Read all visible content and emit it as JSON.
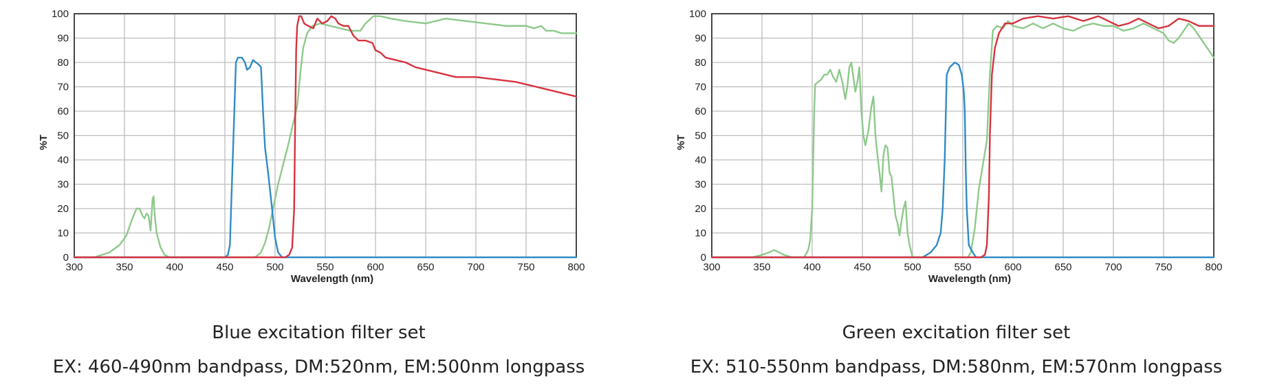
{
  "chart_data": [
    {
      "type": "line",
      "title": "",
      "xlabel": "Wavelength (nm)",
      "ylabel": "%T",
      "xlim": [
        300,
        800
      ],
      "ylim": [
        0,
        100
      ],
      "xticks": [
        300,
        350,
        400,
        450,
        500,
        550,
        600,
        650,
        700,
        750,
        800
      ],
      "yticks": [
        0,
        10,
        20,
        30,
        40,
        50,
        60,
        70,
        80,
        90,
        100
      ],
      "grid": true,
      "series": [
        {
          "color": "#8dc98a",
          "points": [
            [
              300,
              0
            ],
            [
              320,
              0
            ],
            [
              335,
              2
            ],
            [
              345,
              5
            ],
            [
              352,
              9
            ],
            [
              357,
              15
            ],
            [
              362,
              20
            ],
            [
              365,
              20
            ],
            [
              368,
              17
            ],
            [
              370,
              16
            ],
            [
              372,
              18
            ],
            [
              374,
              17
            ],
            [
              376,
              11
            ],
            [
              378,
              24
            ],
            [
              379,
              25
            ],
            [
              380,
              18
            ],
            [
              382,
              10
            ],
            [
              386,
              4
            ],
            [
              390,
              1
            ],
            [
              395,
              0
            ],
            [
              480,
              0
            ],
            [
              486,
              2
            ],
            [
              490,
              6
            ],
            [
              494,
              12
            ],
            [
              498,
              20
            ],
            [
              503,
              30
            ],
            [
              508,
              38
            ],
            [
              513,
              46
            ],
            [
              518,
              55
            ],
            [
              522,
              62
            ],
            [
              525,
              75
            ],
            [
              528,
              86
            ],
            [
              532,
              92
            ],
            [
              537,
              95
            ],
            [
              545,
              96
            ],
            [
              555,
              95
            ],
            [
              565,
              94
            ],
            [
              575,
              93
            ],
            [
              585,
              93
            ],
            [
              590,
              96
            ],
            [
              598,
              99
            ],
            [
              605,
              99
            ],
            [
              615,
              98
            ],
            [
              630,
              97
            ],
            [
              650,
              96
            ],
            [
              670,
              98
            ],
            [
              690,
              97
            ],
            [
              710,
              96
            ],
            [
              730,
              95
            ],
            [
              750,
              95
            ],
            [
              758,
              94
            ],
            [
              765,
              95
            ],
            [
              770,
              93
            ],
            [
              778,
              93
            ],
            [
              785,
              92
            ],
            [
              800,
              92
            ]
          ]
        },
        {
          "color": "#2f8bc6",
          "points": [
            [
              300,
              0
            ],
            [
              450,
              0
            ],
            [
              453,
              1
            ],
            [
              455,
              5
            ],
            [
              457,
              30
            ],
            [
              459,
              55
            ],
            [
              461,
              80
            ],
            [
              463,
              82
            ],
            [
              467,
              82
            ],
            [
              470,
              80
            ],
            [
              472,
              77
            ],
            [
              475,
              78
            ],
            [
              478,
              81
            ],
            [
              481,
              80
            ],
            [
              484,
              79
            ],
            [
              486,
              78
            ],
            [
              488,
              60
            ],
            [
              490,
              45
            ],
            [
              493,
              35
            ],
            [
              497,
              20
            ],
            [
              500,
              8
            ],
            [
              503,
              2
            ],
            [
              507,
              0
            ],
            [
              800,
              0
            ]
          ]
        },
        {
          "color": "#d6323e",
          "points": [
            [
              300,
              0
            ],
            [
              510,
              0
            ],
            [
              514,
              1
            ],
            [
              517,
              4
            ],
            [
              519,
              20
            ],
            [
              520,
              55
            ],
            [
              521,
              85
            ],
            [
              522,
              95
            ],
            [
              524,
              99
            ],
            [
              526,
              99
            ],
            [
              529,
              96
            ],
            [
              533,
              95
            ],
            [
              538,
              94
            ],
            [
              542,
              98
            ],
            [
              547,
              96
            ],
            [
              552,
              97
            ],
            [
              556,
              99
            ],
            [
              560,
              98
            ],
            [
              563,
              96
            ],
            [
              568,
              95
            ],
            [
              573,
              95
            ],
            [
              578,
              91
            ],
            [
              583,
              89
            ],
            [
              590,
              89
            ],
            [
              597,
              88
            ],
            [
              600,
              85
            ],
            [
              605,
              84
            ],
            [
              610,
              82
            ],
            [
              620,
              81
            ],
            [
              630,
              80
            ],
            [
              640,
              78
            ],
            [
              660,
              76
            ],
            [
              680,
              74
            ],
            [
              700,
              74
            ],
            [
              720,
              73
            ],
            [
              740,
              72
            ],
            [
              760,
              70
            ],
            [
              780,
              68
            ],
            [
              800,
              66
            ]
          ]
        }
      ]
    },
    {
      "type": "line",
      "title": "",
      "xlabel": "Wavelength (nm)",
      "ylabel": "%T",
      "xlim": [
        300,
        800
      ],
      "ylim": [
        0,
        100
      ],
      "xticks": [
        300,
        350,
        400,
        450,
        500,
        550,
        600,
        650,
        700,
        750,
        800
      ],
      "yticks": [
        0,
        10,
        20,
        30,
        40,
        50,
        60,
        70,
        80,
        90,
        100
      ],
      "grid": true,
      "series": [
        {
          "color": "#8dc98a",
          "points": [
            [
              300,
              0
            ],
            [
              340,
              0
            ],
            [
              350,
              1
            ],
            [
              357,
              2
            ],
            [
              362,
              3
            ],
            [
              367,
              2
            ],
            [
              372,
              1
            ],
            [
              380,
              0
            ],
            [
              392,
              0
            ],
            [
              396,
              3
            ],
            [
              398,
              7
            ],
            [
              400,
              20
            ],
            [
              401,
              40
            ],
            [
              402,
              60
            ],
            [
              403,
              71
            ],
            [
              406,
              72
            ],
            [
              409,
              73
            ],
            [
              412,
              75
            ],
            [
              415,
              75
            ],
            [
              418,
              77
            ],
            [
              421,
              74
            ],
            [
              424,
              72
            ],
            [
              427,
              77
            ],
            [
              430,
              72
            ],
            [
              433,
              65
            ],
            [
              435,
              70
            ],
            [
              437,
              78
            ],
            [
              439,
              80
            ],
            [
              441,
              74
            ],
            [
              443,
              68
            ],
            [
              445,
              72
            ],
            [
              447,
              78
            ],
            [
              449,
              60
            ],
            [
              451,
              50
            ],
            [
              453,
              46
            ],
            [
              456,
              52
            ],
            [
              459,
              62
            ],
            [
              461,
              66
            ],
            [
              463,
              50
            ],
            [
              465,
              42
            ],
            [
              467,
              35
            ],
            [
              469,
              27
            ],
            [
              471,
              42
            ],
            [
              473,
              46
            ],
            [
              475,
              45
            ],
            [
              477,
              35
            ],
            [
              479,
              33
            ],
            [
              481,
              25
            ],
            [
              483,
              17
            ],
            [
              485,
              14
            ],
            [
              487,
              9
            ],
            [
              489,
              15
            ],
            [
              491,
              20
            ],
            [
              493,
              23
            ],
            [
              495,
              10
            ],
            [
              497,
              5
            ],
            [
              500,
              0
            ],
            [
              555,
              0
            ],
            [
              558,
              2
            ],
            [
              562,
              12
            ],
            [
              566,
              28
            ],
            [
              570,
              38
            ],
            [
              574,
              48
            ],
            [
              577,
              75
            ],
            [
              580,
              93
            ],
            [
              584,
              95
            ],
            [
              590,
              94
            ],
            [
              595,
              97
            ],
            [
              600,
              95
            ],
            [
              610,
              94
            ],
            [
              620,
              96
            ],
            [
              630,
              94
            ],
            [
              640,
              96
            ],
            [
              650,
              94
            ],
            [
              660,
              93
            ],
            [
              670,
              95
            ],
            [
              680,
              96
            ],
            [
              690,
              95
            ],
            [
              700,
              95
            ],
            [
              710,
              93
            ],
            [
              720,
              94
            ],
            [
              730,
              96
            ],
            [
              740,
              94
            ],
            [
              750,
              92
            ],
            [
              755,
              89
            ],
            [
              760,
              88
            ],
            [
              765,
              90
            ],
            [
              770,
              93
            ],
            [
              775,
              96
            ],
            [
              780,
              94
            ],
            [
              785,
              91
            ],
            [
              790,
              88
            ],
            [
              795,
              85
            ],
            [
              800,
              82
            ]
          ]
        },
        {
          "color": "#2f8bc6",
          "points": [
            [
              300,
              0
            ],
            [
              510,
              0
            ],
            [
              518,
              2
            ],
            [
              524,
              5
            ],
            [
              528,
              10
            ],
            [
              530,
              20
            ],
            [
              532,
              40
            ],
            [
              534,
              75
            ],
            [
              537,
              78
            ],
            [
              542,
              80
            ],
            [
              546,
              79
            ],
            [
              549,
              75
            ],
            [
              551,
              68
            ],
            [
              552,
              60
            ],
            [
              553,
              35
            ],
            [
              554,
              20
            ],
            [
              556,
              5
            ],
            [
              560,
              2
            ],
            [
              563,
              0
            ],
            [
              800,
              0
            ]
          ]
        },
        {
          "color": "#d6323e",
          "points": [
            [
              300,
              0
            ],
            [
              568,
              0
            ],
            [
              572,
              1
            ],
            [
              574,
              5
            ],
            [
              576,
              25
            ],
            [
              577,
              50
            ],
            [
              579,
              75
            ],
            [
              582,
              86
            ],
            [
              586,
              92
            ],
            [
              592,
              96
            ],
            [
              600,
              96
            ],
            [
              610,
              98
            ],
            [
              625,
              99
            ],
            [
              640,
              98
            ],
            [
              655,
              99
            ],
            [
              670,
              97
            ],
            [
              685,
              99
            ],
            [
              695,
              97
            ],
            [
              705,
              95
            ],
            [
              715,
              96
            ],
            [
              725,
              98
            ],
            [
              735,
              96
            ],
            [
              745,
              94
            ],
            [
              755,
              95
            ],
            [
              765,
              98
            ],
            [
              775,
              97
            ],
            [
              785,
              95
            ],
            [
              795,
              95
            ],
            [
              800,
              95
            ]
          ]
        }
      ]
    }
  ],
  "captions": [
    {
      "title": "Blue excitation filter set",
      "subtitle": "EX: 460-490nm bandpass, DM:520nm, EM:500nm longpass"
    },
    {
      "title": "Green excitation filter set",
      "subtitle": "EX: 510-550nm bandpass, DM:580nm, EM:570nm longpass"
    }
  ]
}
